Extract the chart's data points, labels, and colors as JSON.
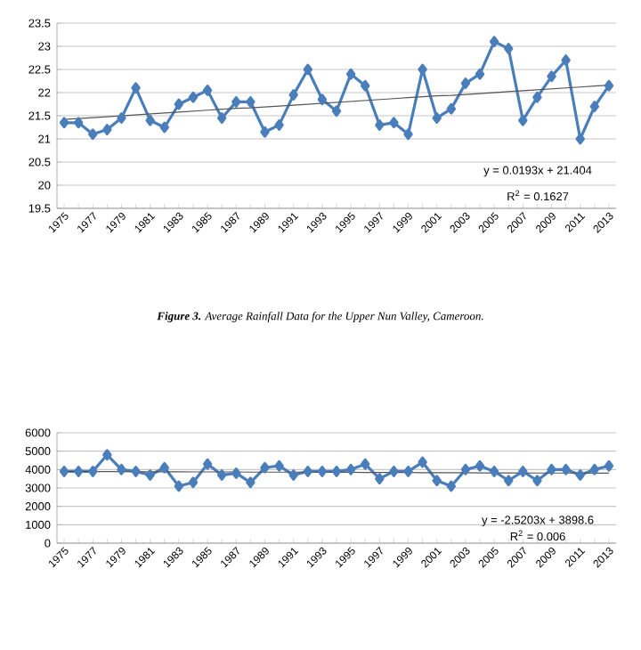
{
  "chart_data": [
    {
      "type": "line",
      "categories": [
        "1975",
        null,
        "1977",
        null,
        "1979",
        null,
        "1981",
        null,
        "1983",
        null,
        "1985",
        null,
        "1987",
        null,
        "1989",
        null,
        "1991",
        null,
        "1993",
        null,
        "1995",
        null,
        "1997",
        null,
        "1999",
        null,
        "2001",
        null,
        "2003",
        null,
        "2005",
        null,
        "2007",
        null,
        "2009",
        null,
        "2011",
        null,
        "2013"
      ],
      "series": [
        {
          "color": "#4a7ebb",
          "marker": "diamond",
          "values": [
            21.35,
            21.35,
            21.1,
            21.2,
            21.45,
            22.1,
            21.4,
            21.25,
            21.75,
            21.9,
            22.05,
            21.45,
            21.8,
            21.8,
            21.15,
            21.3,
            21.95,
            22.5,
            21.85,
            21.6,
            22.4,
            22.15,
            21.3,
            21.35,
            21.1,
            22.5,
            21.45,
            21.65,
            22.2,
            22.4,
            23.1,
            22.95,
            21.4,
            21.9,
            22.35,
            22.7,
            21.0,
            21.7,
            22.15
          ]
        },
        {
          "color": "#555555",
          "marker": "none",
          "values": [
            21.42,
            21.44,
            21.46,
            21.48,
            21.5,
            21.52,
            21.54,
            21.56,
            21.58,
            21.6,
            21.62,
            21.64,
            21.66,
            21.67,
            21.69,
            21.71,
            21.73,
            21.75,
            21.77,
            21.79,
            21.81,
            21.83,
            21.85,
            21.87,
            21.89,
            21.91,
            21.93,
            21.94,
            21.96,
            21.98,
            22.0,
            22.02,
            22.04,
            22.06,
            22.08,
            22.1,
            22.12,
            22.14,
            22.16
          ]
        }
      ],
      "ylim": [
        19.5,
        23.5
      ],
      "yticks": [
        19.5,
        20,
        20.5,
        21,
        21.5,
        22,
        22.5,
        23,
        23.5
      ],
      "grid": "y",
      "annotations": [
        "y = 0.0193x + 21.404",
        "R$^{2}$ = 0.1627",
        "**Figure 3.** Average Rainfall Data for the Upper Nun Valley, Cameroon."
      ]
    },
    {
      "type": "line",
      "categories": [
        "1975",
        null,
        "1977",
        null,
        "1979",
        null,
        "1981",
        null,
        "1983",
        null,
        "1985",
        null,
        "1987",
        null,
        "1989",
        null,
        "1991",
        null,
        "1993",
        null,
        "1995",
        null,
        "1997",
        null,
        "1999",
        null,
        "2001",
        null,
        "2003",
        null,
        "2005",
        null,
        "2007",
        null,
        "2009",
        null,
        "2011",
        null,
        "2013"
      ],
      "series": [
        {
          "color": "#4a7ebb",
          "marker": "diamond",
          "values": [
            3900,
            3900,
            3900,
            4800,
            4000,
            3900,
            3700,
            4100,
            3100,
            3300,
            4300,
            3700,
            3800,
            3300,
            4100,
            4200,
            3700,
            3900,
            3900,
            3900,
            4000,
            4300,
            3500,
            3900,
            3900,
            4400,
            3400,
            3100,
            4000,
            4200,
            3900,
            3400,
            3900,
            3400,
            4000,
            4000,
            3700,
            4000,
            4200
          ]
        },
        {
          "color": "#555555",
          "marker": "none",
          "values": [
            3900,
            3890,
            3890,
            3890,
            3890,
            3880,
            3880,
            3880,
            3880,
            3870,
            3870,
            3870,
            3870,
            3860,
            3860,
            3860,
            3860,
            3850,
            3850,
            3850,
            3850,
            3840,
            3840,
            3840,
            3840,
            3830,
            3830,
            3830,
            3830,
            3820,
            3820,
            3820,
            3820,
            3810,
            3810,
            3810,
            3810,
            3800,
            3800
          ]
        }
      ],
      "ylim": [
        0,
        6000
      ],
      "yticks": [
        0,
        1000,
        2000,
        3000,
        4000,
        5000,
        6000
      ],
      "grid": "y",
      "annotations": [
        "y = -2.5203x + 3898.6",
        "R$^{2}$ = 0.006"
      ]
    }
  ]
}
